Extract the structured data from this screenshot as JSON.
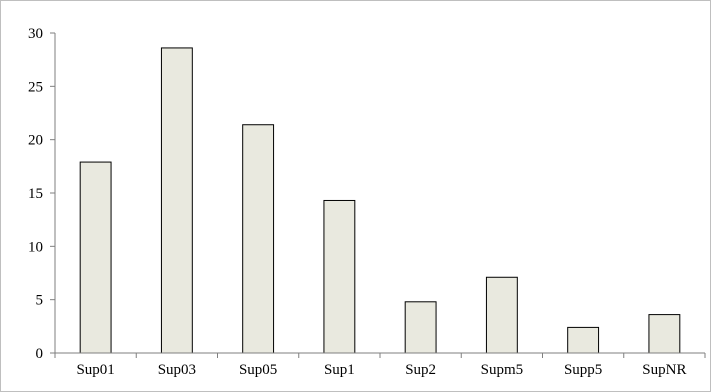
{
  "chart_data": {
    "type": "bar",
    "title": "",
    "xlabel": "",
    "ylabel": "",
    "categories": [
      "Sup01",
      "Sup03",
      "Sup05",
      "Sup1",
      "Sup2",
      "Supm5",
      "Supp5",
      "SupNR"
    ],
    "values": [
      17.9,
      28.6,
      21.4,
      14.3,
      4.8,
      7.1,
      2.4,
      3.6
    ],
    "ylim": [
      0,
      30
    ],
    "yticks": [
      0,
      5,
      10,
      15,
      20,
      25,
      30
    ],
    "grid": false,
    "legend": "none",
    "colors": {
      "bar_fill": "#e9e9df",
      "bar_stroke": "#000000",
      "axis": "#7f7f7f",
      "frame": "#bfbfbf"
    }
  }
}
